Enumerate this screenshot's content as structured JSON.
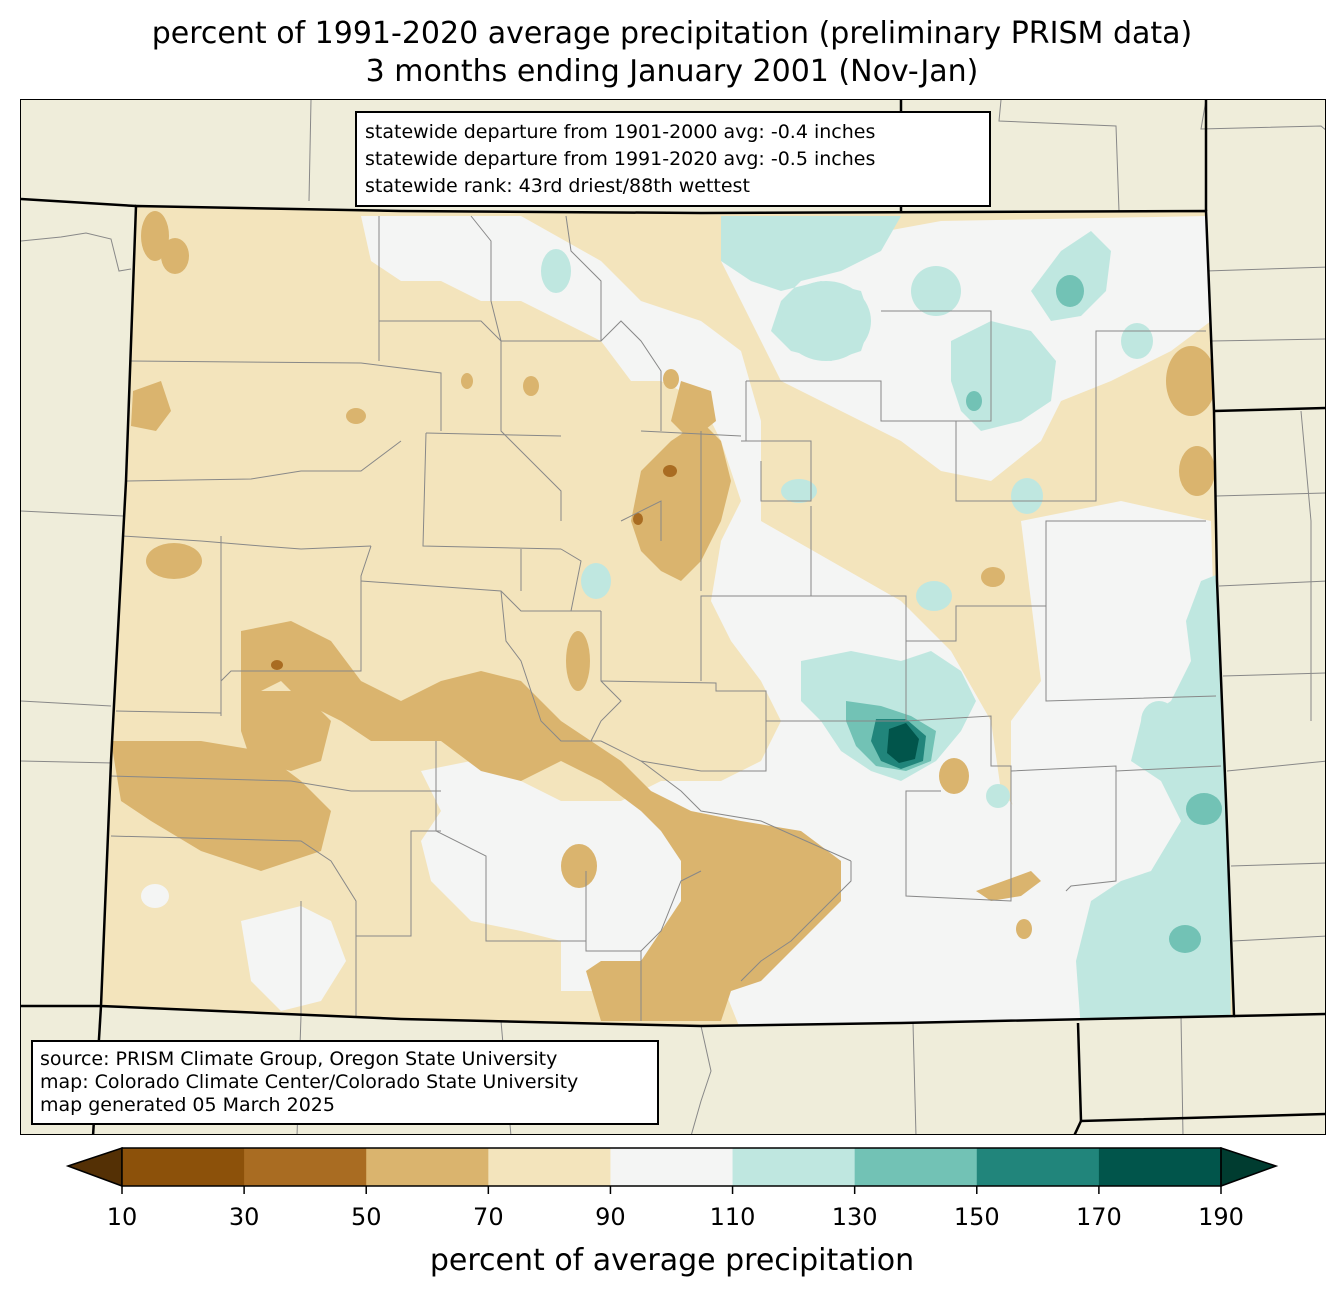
{
  "title": {
    "line1": "percent of 1991-2020 average precipitation (preliminary PRISM data)",
    "line2": "3 months ending January 2001 (Nov-Jan)"
  },
  "stats": [
    "statewide departure from 1901-2000 avg: -0.4 inches",
    "statewide departure from 1991-2020 avg: -0.5 inches",
    "statewide rank: 43rd driest/88th wettest"
  ],
  "source": [
    "source: PRISM Climate Group, Oregon State University",
    "map: Colorado Climate Center/Colorado State University",
    "map generated 05 March 2025"
  ],
  "colorbar": {
    "label": "percent of average precipitation",
    "ticks": [
      "10",
      "30",
      "50",
      "70",
      "90",
      "110",
      "130",
      "150",
      "170",
      "190"
    ],
    "under_color": "#543005",
    "over_color": "#003c30",
    "colors": [
      "#8c510a",
      "#a96c22",
      "#dab46e",
      "#f3e4bc",
      "#f4f5f4",
      "#bfe7e0",
      "#72c2b5",
      "#21857b",
      "#01554b"
    ]
  },
  "map": {
    "background_color": "#efedda",
    "state_boundary_color": "#000000",
    "county_line_color": "#888888"
  }
}
